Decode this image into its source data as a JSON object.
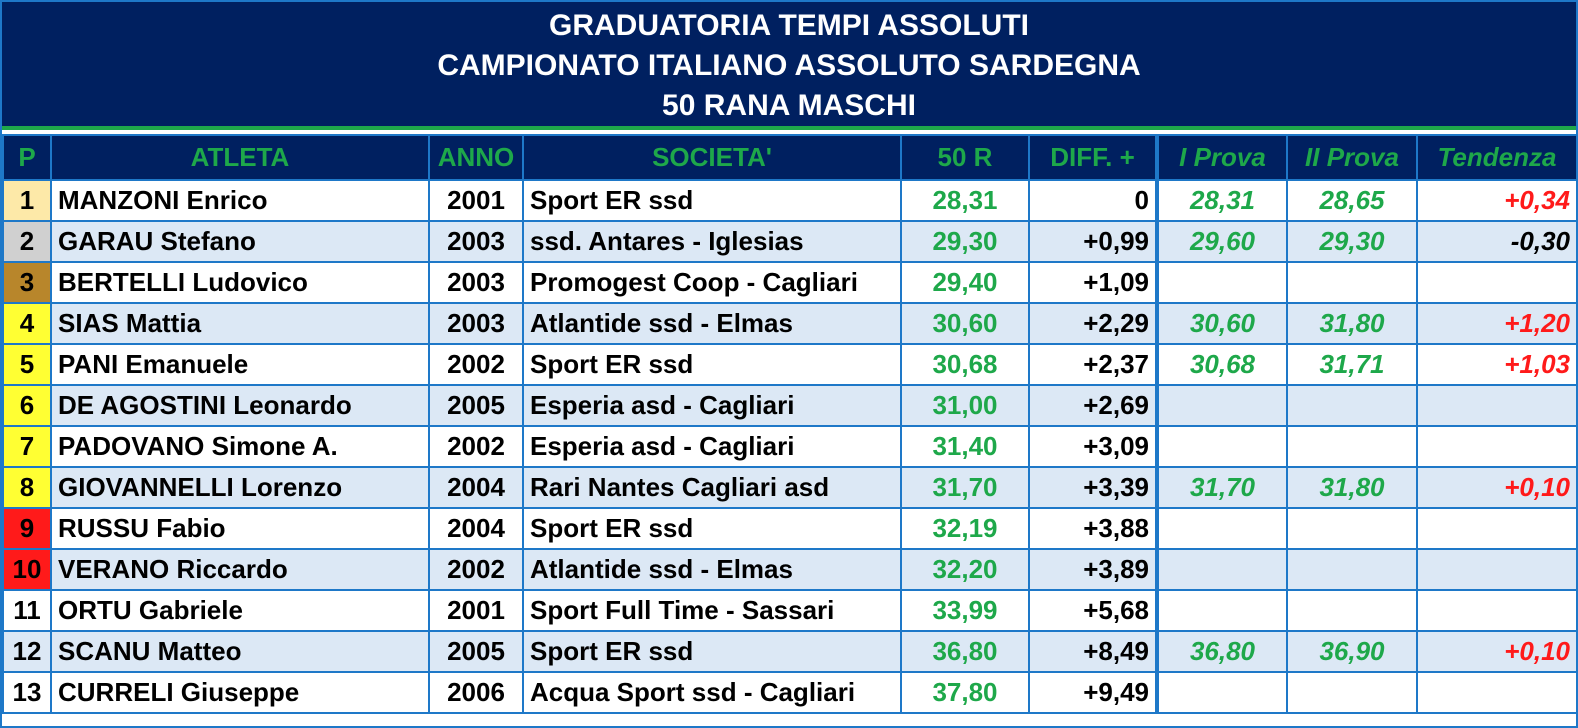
{
  "title": {
    "line1": "GRADUATORIA TEMPI ASSOLUTI",
    "line2": "CAMPIONATO ITALIANO ASSOLUTO SARDEGNA",
    "line3": "50 RANA MASCHI"
  },
  "headers": {
    "pos": "P",
    "athlete": "ATLETA",
    "year": "ANNO",
    "club": "SOCIETA'",
    "time": "50 R",
    "diff": "DIFF. +",
    "prova1": "I Prova",
    "prova2": "II Prova",
    "trend": "Tendenza"
  },
  "colors": {
    "header_bg": "#002060",
    "header_text": "#1ea84a",
    "grid": "#1e78c8",
    "row_alt": "#dce8f5",
    "gold": "#fde9a8",
    "silver": "#d0d0d0",
    "bronze": "#b8862b",
    "yellow": "#ffff33",
    "red": "#ff1a1a",
    "trend_up": "#ff1a1a",
    "trend_down": "#000000"
  },
  "rows": [
    {
      "pos": "1",
      "name": "MANZONI Enrico",
      "year": "2001",
      "club": "Sport ER ssd",
      "time": "28,31",
      "diff": "0",
      "prova1": "28,31",
      "prova2": "28,65",
      "trend": "+0,34",
      "pos_color": "#fde9a8",
      "trend_color": "#ff1a1a"
    },
    {
      "pos": "2",
      "name": "GARAU Stefano",
      "year": "2003",
      "club": "ssd. Antares - Iglesias",
      "time": "29,30",
      "diff": "+0,99",
      "prova1": "29,60",
      "prova2": "29,30",
      "trend": "-0,30",
      "pos_color": "#d0d0d0",
      "trend_color": "#000000"
    },
    {
      "pos": "3",
      "name": "BERTELLI Ludovico",
      "year": "2003",
      "club": "Promogest Coop - Cagliari",
      "time": "29,40",
      "diff": "+1,09",
      "prova1": "",
      "prova2": "",
      "trend": "",
      "pos_color": "#b8862b",
      "trend_color": "#000000"
    },
    {
      "pos": "4",
      "name": "SIAS Mattia",
      "year": "2003",
      "club": "Atlantide ssd - Elmas",
      "time": "30,60",
      "diff": "+2,29",
      "prova1": "30,60",
      "prova2": "31,80",
      "trend": "+1,20",
      "pos_color": "#ffff33",
      "trend_color": "#ff1a1a"
    },
    {
      "pos": "5",
      "name": "PANI Emanuele",
      "year": "2002",
      "club": "Sport ER ssd",
      "time": "30,68",
      "diff": "+2,37",
      "prova1": "30,68",
      "prova2": "31,71",
      "trend": "+1,03",
      "pos_color": "#ffff33",
      "trend_color": "#ff1a1a"
    },
    {
      "pos": "6",
      "name": "DE AGOSTINI Leonardo",
      "year": "2005",
      "club": "Esperia asd - Cagliari",
      "time": "31,00",
      "diff": "+2,69",
      "prova1": "",
      "prova2": "",
      "trend": "",
      "pos_color": "#ffff33",
      "trend_color": "#000000"
    },
    {
      "pos": "7",
      "name": "PADOVANO Simone A.",
      "year": "2002",
      "club": "Esperia asd - Cagliari",
      "time": "31,40",
      "diff": "+3,09",
      "prova1": "",
      "prova2": "",
      "trend": "",
      "pos_color": "#ffff33",
      "trend_color": "#000000"
    },
    {
      "pos": "8",
      "name": "GIOVANNELLI Lorenzo",
      "year": "2004",
      "club": "Rari Nantes Cagliari asd",
      "time": "31,70",
      "diff": "+3,39",
      "prova1": "31,70",
      "prova2": "31,80",
      "trend": "+0,10",
      "pos_color": "#ffff33",
      "trend_color": "#ff1a1a"
    },
    {
      "pos": "9",
      "name": "RUSSU Fabio",
      "year": "2004",
      "club": "Sport ER ssd",
      "time": "32,19",
      "diff": "+3,88",
      "prova1": "",
      "prova2": "",
      "trend": "",
      "pos_color": "#ff1a1a",
      "trend_color": "#000000"
    },
    {
      "pos": "10",
      "name": "VERANO Riccardo",
      "year": "2002",
      "club": "Atlantide ssd - Elmas",
      "time": "32,20",
      "diff": "+3,89",
      "prova1": "",
      "prova2": "",
      "trend": "",
      "pos_color": "#ff1a1a",
      "trend_color": "#000000"
    },
    {
      "pos": "11",
      "name": "ORTU Gabriele",
      "year": "2001",
      "club": "Sport Full Time - Sassari",
      "time": "33,99",
      "diff": "+5,68",
      "prova1": "",
      "prova2": "",
      "trend": "",
      "pos_color": "",
      "trend_color": "#000000"
    },
    {
      "pos": "12",
      "name": "SCANU Matteo",
      "year": "2005",
      "club": "Sport ER ssd",
      "time": "36,80",
      "diff": "+8,49",
      "prova1": "36,80",
      "prova2": "36,90",
      "trend": "+0,10",
      "pos_color": "",
      "trend_color": "#ff1a1a"
    },
    {
      "pos": "13",
      "name": "CURRELI Giuseppe",
      "year": "2006",
      "club": "Acqua Sport ssd - Cagliari",
      "time": "37,80",
      "diff": "+9,49",
      "prova1": "",
      "prova2": "",
      "trend": "",
      "pos_color": "",
      "trend_color": "#000000"
    }
  ]
}
